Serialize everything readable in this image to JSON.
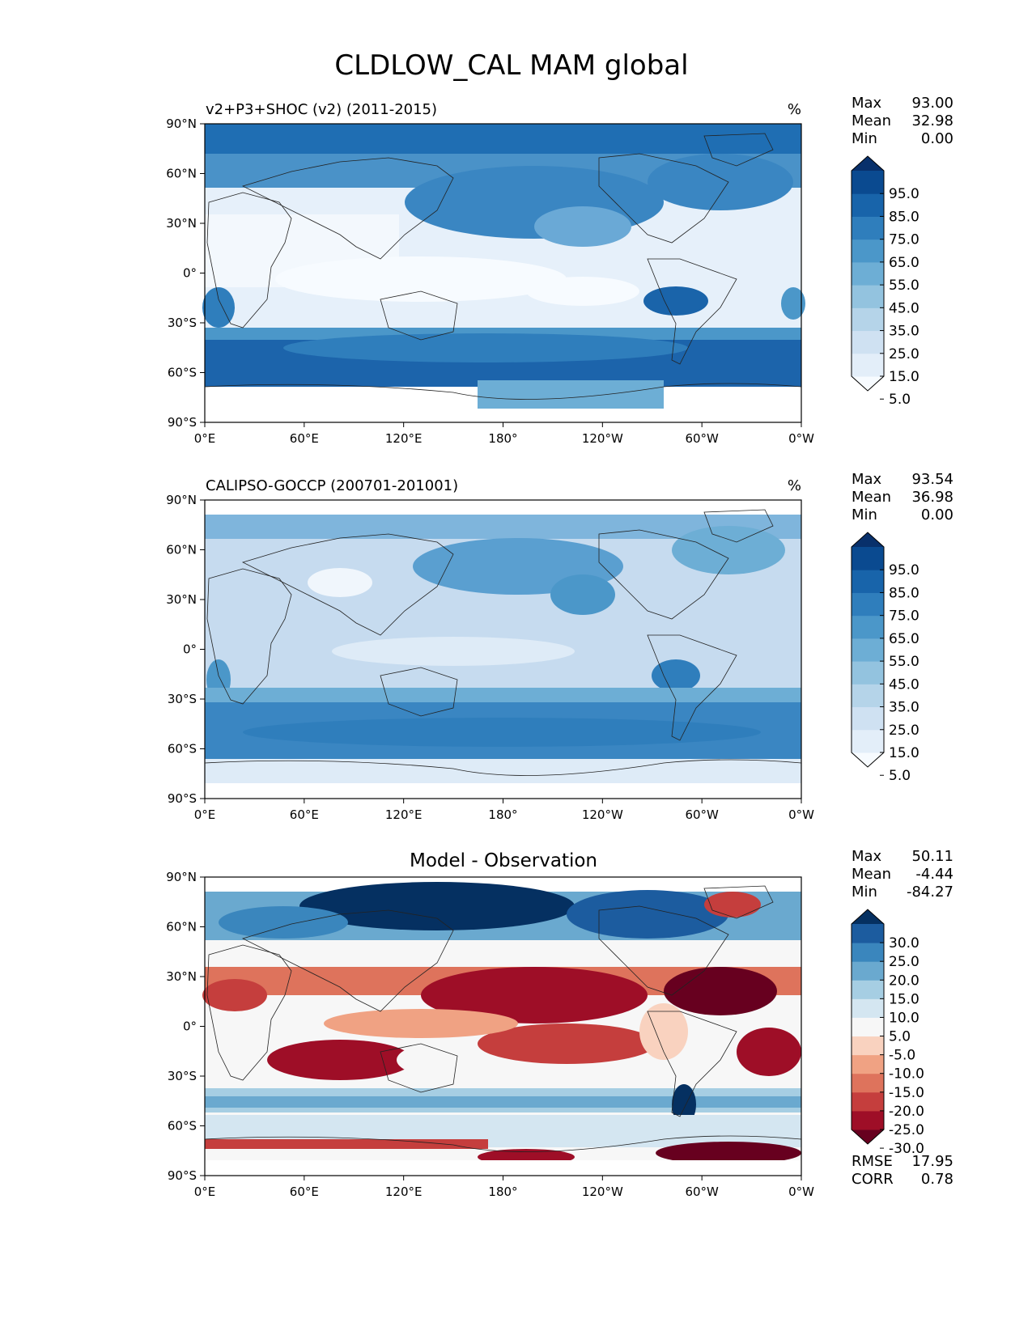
{
  "figure": {
    "title": "CLDLOW_CAL MAM global"
  },
  "panels": [
    {
      "id": "model",
      "title_left": "v2+P3+SHOC (v2) (2011-2015)",
      "title_center": "",
      "units": "%",
      "stats": [
        {
          "label": "Max",
          "value": "93.00"
        },
        {
          "label": "Mean",
          "value": "32.98"
        },
        {
          "label": "Min",
          "value": "0.00"
        }
      ],
      "colorbar": {
        "ticks": [
          "95.0",
          "85.0",
          "75.0",
          "65.0",
          "55.0",
          "45.0",
          "35.0",
          "25.0",
          "15.0",
          "5.0"
        ],
        "colors": [
          "#f7fbff",
          "#e3eef9",
          "#cfe1f2",
          "#b5d4e9",
          "#93c3df",
          "#6daed5",
          "#4b97c9",
          "#2f7ebc",
          "#1864aa",
          "#0a4a90",
          "#08306b"
        ]
      }
    },
    {
      "id": "obs",
      "title_left": "CALIPSO-GOCCP (200701-201001)",
      "title_center": "",
      "units": "%",
      "stats": [
        {
          "label": "Max",
          "value": "93.54"
        },
        {
          "label": "Mean",
          "value": "36.98"
        },
        {
          "label": "Min",
          "value": "0.00"
        }
      ],
      "colorbar": {
        "ticks": [
          "95.0",
          "85.0",
          "75.0",
          "65.0",
          "55.0",
          "45.0",
          "35.0",
          "25.0",
          "15.0",
          "5.0"
        ],
        "colors": [
          "#f7fbff",
          "#e3eef9",
          "#cfe1f2",
          "#b5d4e9",
          "#93c3df",
          "#6daed5",
          "#4b97c9",
          "#2f7ebc",
          "#1864aa",
          "#0a4a90",
          "#08306b"
        ]
      }
    },
    {
      "id": "diff",
      "title_left": "",
      "title_center": "Model - Observation",
      "units": "",
      "stats": [
        {
          "label": "Max",
          "value": "50.11"
        },
        {
          "label": "Mean",
          "value": "-4.44"
        },
        {
          "label": "Min",
          "value": "-84.27"
        }
      ],
      "colorbar": {
        "ticks": [
          "30.0",
          "25.0",
          "20.0",
          "15.0",
          "10.0",
          "5.0",
          "-5.0",
          "-10.0",
          "-15.0",
          "-20.0",
          "-25.0",
          "-30.0"
        ],
        "colors": [
          "#67001f",
          "#9e0e27",
          "#c53e3d",
          "#de735c",
          "#f0a283",
          "#f9d2bf",
          "#f7f7f7",
          "#d4e6f1",
          "#a6cee3",
          "#6aa9cf",
          "#3a86bd",
          "#1c5c9f",
          "#053061"
        ]
      },
      "extra_stats": [
        {
          "label": "RMSE",
          "value": "17.95"
        },
        {
          "label": "CORR",
          "value": "0.78"
        }
      ]
    }
  ],
  "axes": {
    "lat_ticks": [
      "90°N",
      "60°N",
      "30°N",
      "0°",
      "30°S",
      "60°S",
      "90°S"
    ],
    "lon_ticks": [
      "0°E",
      "60°E",
      "120°E",
      "180°",
      "120°W",
      "60°W",
      "0°W"
    ]
  }
}
